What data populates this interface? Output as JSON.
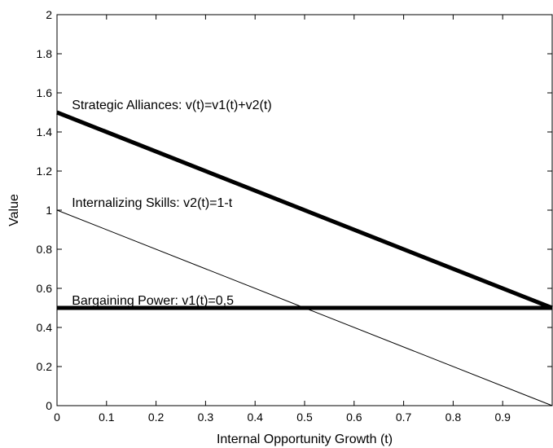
{
  "chart_data": {
    "type": "line",
    "xlabel": "Internal Opportunity Growth (t)",
    "ylabel": "Value",
    "xlim": [
      0,
      1
    ],
    "ylim": [
      0,
      2
    ],
    "xticks": [
      0,
      0.1,
      0.2,
      0.3,
      0.4,
      0.5,
      0.6,
      0.7,
      0.8,
      0.9
    ],
    "xtick_labels": [
      "0",
      "0.1",
      "0.2",
      "0.3",
      "0.4",
      "0.5",
      "0.6",
      "0.7",
      "0.8",
      "0.9"
    ],
    "yticks": [
      0,
      0.2,
      0.4,
      0.6,
      0.8,
      1,
      1.2,
      1.4,
      1.6,
      1.8,
      2
    ],
    "ytick_labels": [
      "0",
      "0.2",
      "0.4",
      "0.6",
      "0.8",
      "1",
      "1.2",
      "1.4",
      "1.6",
      "1.8",
      "2"
    ],
    "grid": false,
    "series": [
      {
        "x": [
          0,
          1
        ],
        "y": [
          1.5,
          0.5
        ],
        "color": "#000000",
        "weight": "thick"
      },
      {
        "x": [
          0,
          1
        ],
        "y": [
          1.0,
          0.0
        ],
        "color": "#000000",
        "weight": "thin"
      },
      {
        "x": [
          0,
          1
        ],
        "y": [
          0.5,
          0.5
        ],
        "color": "#000000",
        "weight": "thick"
      }
    ],
    "annotations": [
      {
        "text": "Strategic Alliances: v(t)=v1(t)+v2(t)",
        "x": 0.03,
        "y": 1.5
      },
      {
        "text": "Internalizing Skills: v2(t)=1-t",
        "x": 0.03,
        "y": 1.0
      },
      {
        "text": "Bargaining Power: v1(t)=0,5",
        "x": 0.03,
        "y": 0.5
      }
    ]
  }
}
